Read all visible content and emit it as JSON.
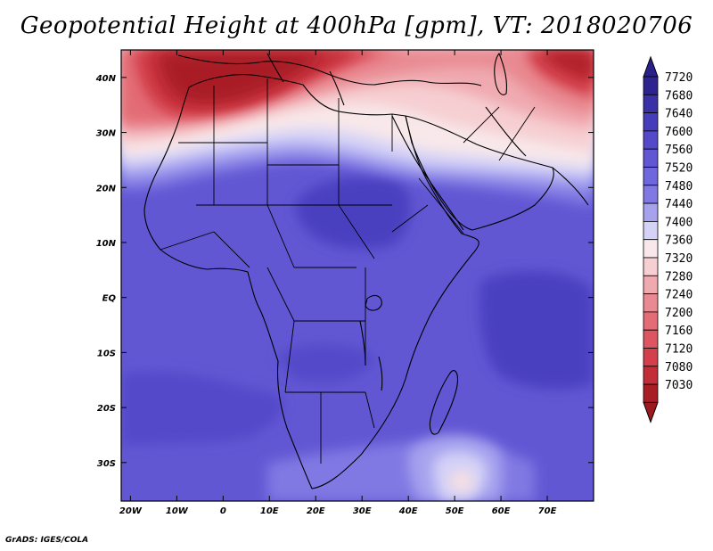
{
  "title": "Geopotential Height at 400hPa [gpm], VT: 2018020706",
  "credit": "GrADS: IGES/COLA",
  "map": {
    "lon_range": [
      -22,
      80
    ],
    "lat_range": [
      -37,
      45
    ],
    "lon_ticks": [
      {
        "value": -20,
        "label": "20W"
      },
      {
        "value": -10,
        "label": "10W"
      },
      {
        "value": 0,
        "label": "0"
      },
      {
        "value": 10,
        "label": "10E"
      },
      {
        "value": 20,
        "label": "20E"
      },
      {
        "value": 30,
        "label": "30E"
      },
      {
        "value": 40,
        "label": "40E"
      },
      {
        "value": 50,
        "label": "50E"
      },
      {
        "value": 60,
        "label": "60E"
      },
      {
        "value": 70,
        "label": "70E"
      }
    ],
    "lat_ticks": [
      {
        "value": 40,
        "label": "40N"
      },
      {
        "value": 30,
        "label": "30N"
      },
      {
        "value": 20,
        "label": "20N"
      },
      {
        "value": 10,
        "label": "10N"
      },
      {
        "value": 0,
        "label": "EQ"
      },
      {
        "value": -10,
        "label": "10S"
      },
      {
        "value": -20,
        "label": "20S"
      },
      {
        "value": -30,
        "label": "30S"
      }
    ]
  },
  "colorbar": {
    "levels": [
      {
        "value": "7720",
        "color": "#2e248f"
      },
      {
        "value": "7680",
        "color": "#3a31a6"
      },
      {
        "value": "7640",
        "color": "#463dba"
      },
      {
        "value": "7600",
        "color": "#5349c9"
      },
      {
        "value": "7560",
        "color": "#6157d3"
      },
      {
        "value": "7520",
        "color": "#6f67dc"
      },
      {
        "value": "7480",
        "color": "#8079e3"
      },
      {
        "value": "7440",
        "color": "#a6a2ee"
      },
      {
        "value": "7400",
        "color": "#d4d2f7"
      },
      {
        "value": "7360",
        "color": "#f8e8ea"
      },
      {
        "value": "7320",
        "color": "#f6cfd2"
      },
      {
        "value": "7280",
        "color": "#efaab0"
      },
      {
        "value": "7240",
        "color": "#e98a92"
      },
      {
        "value": "7200",
        "color": "#e36c76"
      },
      {
        "value": "7160",
        "color": "#dc5561"
      },
      {
        "value": "7120",
        "color": "#d3404c"
      },
      {
        "value": "7080",
        "color": "#c22d37"
      },
      {
        "value": "7030",
        "color": "#a91d25"
      }
    ],
    "top_arrow_color": "#2a208a",
    "bottom_arrow_color": "#9a1a20"
  }
}
